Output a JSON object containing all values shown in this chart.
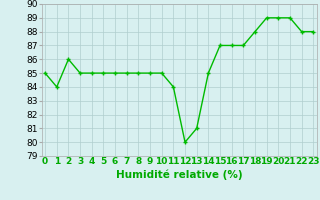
{
  "x": [
    0,
    1,
    2,
    3,
    4,
    5,
    6,
    7,
    8,
    9,
    10,
    11,
    12,
    13,
    14,
    15,
    16,
    17,
    18,
    19,
    20,
    21,
    22,
    23
  ],
  "y": [
    85,
    84,
    86,
    85,
    85,
    85,
    85,
    85,
    85,
    85,
    85,
    84,
    80,
    81,
    85,
    87,
    87,
    87,
    88,
    89,
    89,
    89,
    88,
    88
  ],
  "xlabel": "Humidité relative (%)",
  "ylim": [
    79,
    90
  ],
  "yticks": [
    79,
    80,
    81,
    82,
    83,
    84,
    85,
    86,
    87,
    88,
    89,
    90
  ],
  "xticks": [
    0,
    1,
    2,
    3,
    4,
    5,
    6,
    7,
    8,
    9,
    10,
    11,
    12,
    13,
    14,
    15,
    16,
    17,
    18,
    19,
    20,
    21,
    22,
    23
  ],
  "line_color": "#00bb00",
  "marker_color": "#00bb00",
  "bg_color": "#d8f0f0",
  "grid_color": "#b0cece",
  "xlabel_color": "#00aa00",
  "xlabel_fontsize": 7.5,
  "tick_fontsize": 6.5,
  "line_width": 1.0,
  "marker_size": 2.5,
  "xlim_left": -0.3,
  "xlim_right": 23.3
}
